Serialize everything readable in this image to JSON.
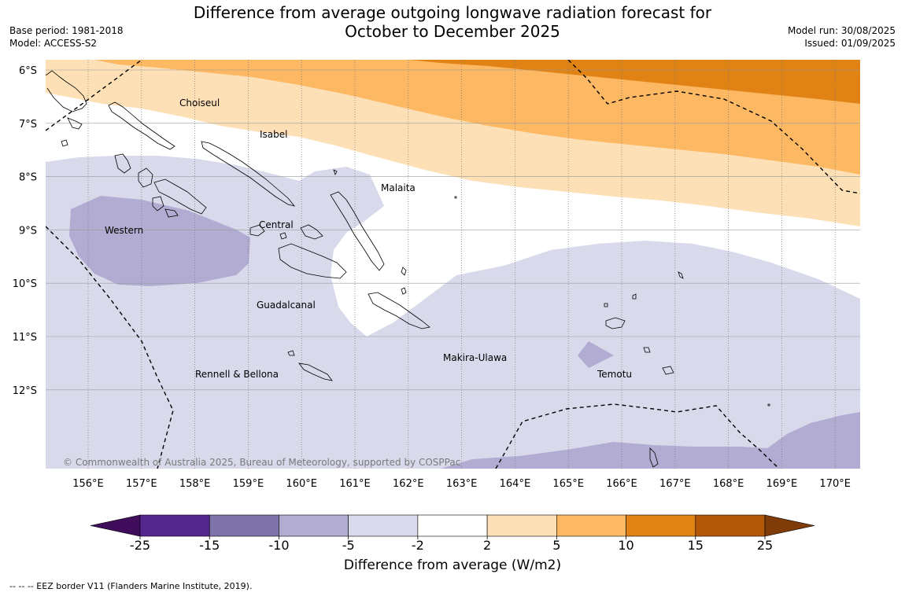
{
  "header": {
    "title_line1": "Difference from average outgoing longwave radiation forecast for",
    "title_line2": "October to December 2025",
    "base_period": "Base period: 1981-2018",
    "model": "Model: ACCESS-S2",
    "model_run": "Model run: 30/08/2025",
    "issued": "Issued: 01/09/2025"
  },
  "map": {
    "lat_labels": [
      "6°S",
      "7°S",
      "8°S",
      "9°S",
      "10°S",
      "11°S",
      "12°S"
    ],
    "lon_labels": [
      "156°E",
      "157°E",
      "158°E",
      "159°E",
      "160°E",
      "161°E",
      "162°E",
      "163°E",
      "164°E",
      "165°E",
      "166°E",
      "167°E",
      "168°E",
      "169°E",
      "170°E"
    ],
    "provinces": {
      "choiseul": "Choiseul",
      "isabel": "Isabel",
      "malaita": "Malaita",
      "western": "Western",
      "central": "Central",
      "guadalcanal": "Guadalcanal",
      "makira": "Makira-Ulawa",
      "rennell": "Rennell & Bellona",
      "temotu": "Temotu"
    },
    "copyright": "© Commonwealth of Australia 2025, Bureau of Meteorology, supported by COSPPac"
  },
  "colorbar": {
    "ticks": [
      "-25",
      "-15",
      "-10",
      "-5",
      "-2",
      "2",
      "5",
      "10",
      "15",
      "25"
    ],
    "colors": [
      "#3f0d5c",
      "#54278f",
      "#8073ac",
      "#b2abd2",
      "#d8daeb",
      "#ffffff",
      "#fee0b6",
      "#fdb863",
      "#e08214",
      "#b35806",
      "#7f3b08"
    ],
    "title": "Difference from average (W/m2)"
  },
  "footnote": "--  --  -- EEZ border V11 (Flanders Marine Institute, 2019)."
}
